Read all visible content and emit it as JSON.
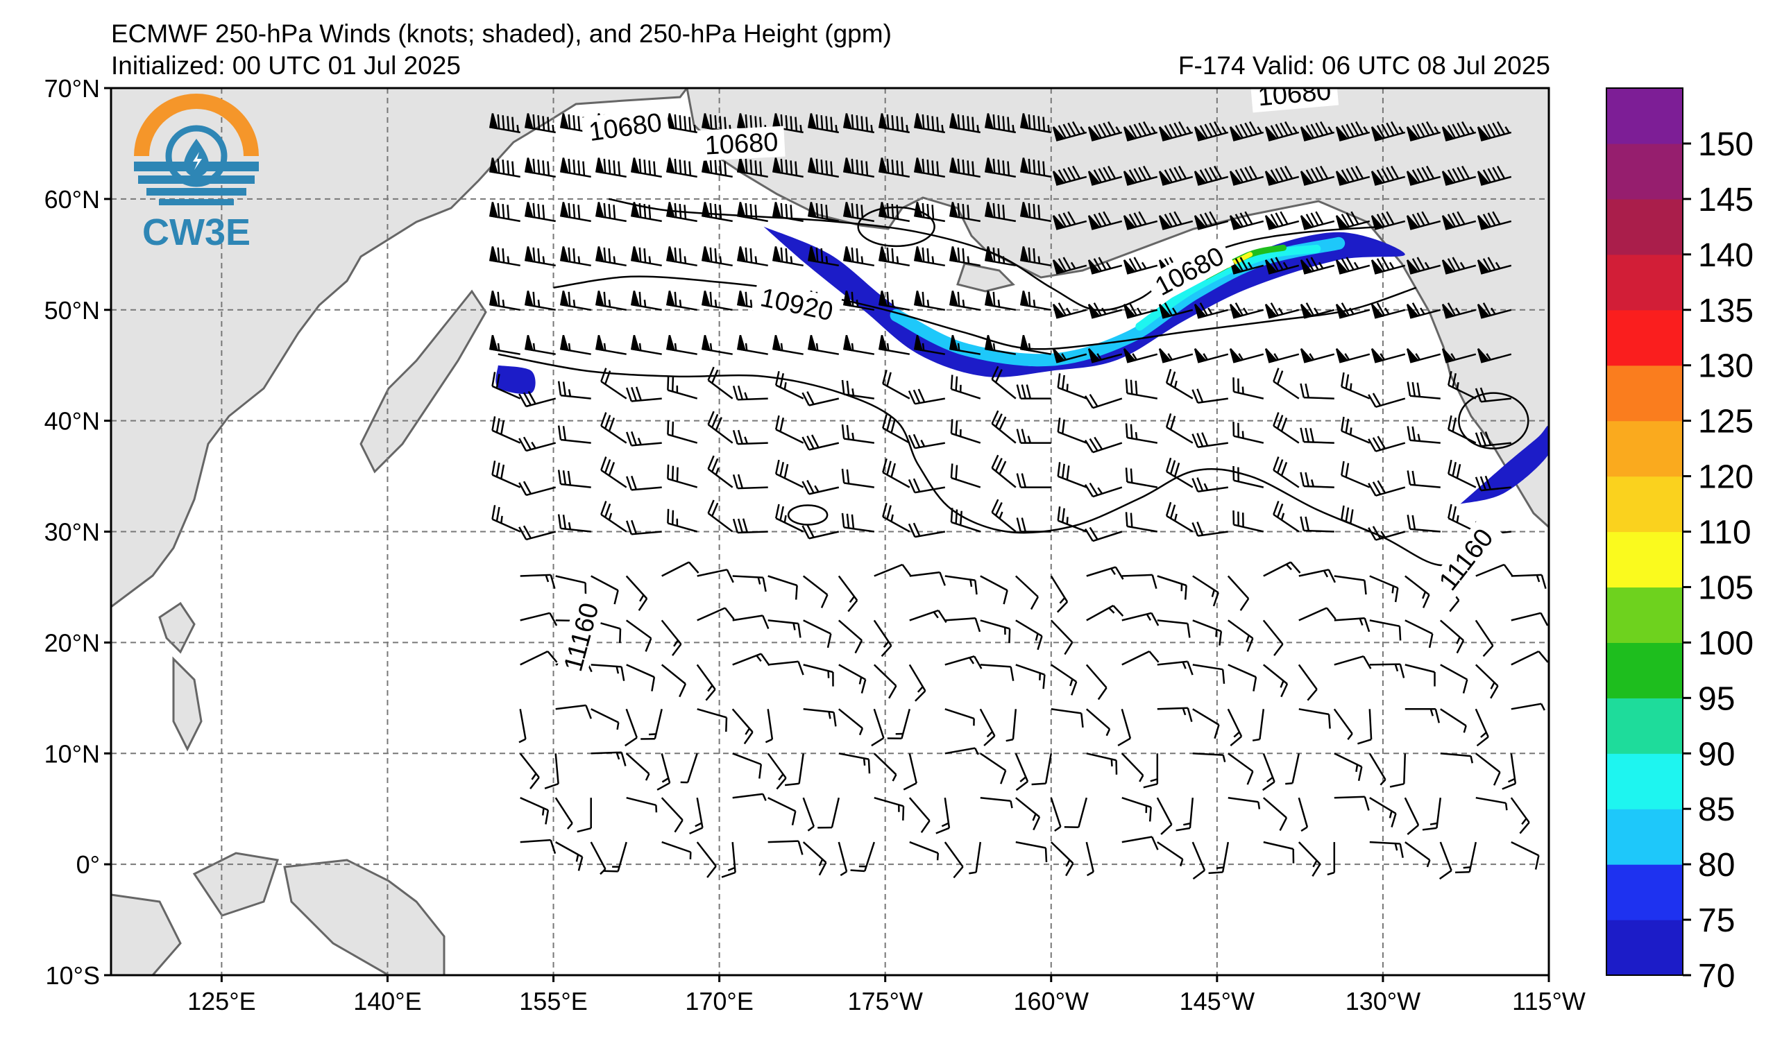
{
  "header": {
    "title": "ECMWF 250-hPa Winds (knots; shaded), and 250-hPa Height (gpm)",
    "initialized": "Initialized: 00 UTC 01 Jul 2025",
    "valid": "F-174  Valid: 06 UTC 08 Jul 2025"
  },
  "logo": {
    "text": "CW3E",
    "ring_color": "#F5962A",
    "accent_color": "#2E86B5"
  },
  "axes": {
    "lon_min": 115,
    "lon_max": 245,
    "lat_min": -10,
    "lat_max": 70,
    "lat_ticks": [
      {
        "v": 70,
        "label": "70°N"
      },
      {
        "v": 60,
        "label": "60°N"
      },
      {
        "v": 50,
        "label": "50°N"
      },
      {
        "v": 40,
        "label": "40°N"
      },
      {
        "v": 30,
        "label": "30°N"
      },
      {
        "v": 20,
        "label": "20°N"
      },
      {
        "v": 10,
        "label": "10°N"
      },
      {
        "v": 0,
        "label": "0°"
      },
      {
        "v": -10,
        "label": "10°S"
      }
    ],
    "lon_ticks": [
      {
        "v": 125,
        "label": "125°E"
      },
      {
        "v": 140,
        "label": "140°E"
      },
      {
        "v": 155,
        "label": "155°E"
      },
      {
        "v": 170,
        "label": "170°E"
      },
      {
        "v": 185,
        "label": "175°W"
      },
      {
        "v": 200,
        "label": "160°W"
      },
      {
        "v": 215,
        "label": "145°W"
      },
      {
        "v": 230,
        "label": "130°W"
      },
      {
        "v": 245,
        "label": "115°W"
      }
    ]
  },
  "colorbar": {
    "levels": [
      70,
      75,
      80,
      85,
      90,
      95,
      100,
      105,
      110,
      120,
      125,
      130,
      135,
      140,
      145,
      150,
      155
    ],
    "colors": [
      "#1C1CC8",
      "#1E32F0",
      "#1EC8FA",
      "#1EF5F0",
      "#1EDC9B",
      "#1EBE1E",
      "#6ED21E",
      "#FAFA1E",
      "#FAD21E",
      "#FAAA1E",
      "#FA7D1E",
      "#FA1E1E",
      "#D21E37",
      "#AA1E4B",
      "#961E6E",
      "#7D1E96"
    ],
    "tick_labels": [
      "70",
      "75",
      "80",
      "85",
      "90",
      "95",
      "100",
      "105",
      "110",
      "120",
      "125",
      "130",
      "135",
      "140",
      "145",
      "150"
    ]
  },
  "map_data": {
    "contours": [
      {
        "label": "10680",
        "points": [
          [
            160,
            60
          ],
          [
            165,
            59
          ],
          [
            172,
            58.5
          ],
          [
            180,
            58
          ],
          [
            188,
            57
          ],
          [
            195,
            55
          ],
          [
            200,
            52
          ],
          [
            204,
            50
          ],
          [
            208,
            51
          ],
          [
            212,
            54
          ],
          [
            217,
            56
          ],
          [
            223,
            57
          ],
          [
            230,
            57.5
          ]
        ]
      },
      {
        "label": "10920",
        "points": [
          [
            155,
            52
          ],
          [
            162,
            53
          ],
          [
            170,
            52.5
          ],
          [
            178,
            51.5
          ],
          [
            185,
            50
          ],
          [
            192,
            48
          ],
          [
            198,
            46.5
          ],
          [
            205,
            47
          ],
          [
            212,
            48
          ],
          [
            220,
            49
          ],
          [
            227,
            50
          ],
          [
            233,
            52
          ]
        ]
      },
      {
        "label": "11160",
        "points": [
          [
            150,
            46
          ],
          [
            158,
            44.5
          ],
          [
            166,
            44
          ],
          [
            174,
            44
          ],
          [
            181,
            42.5
          ],
          [
            186,
            40
          ],
          [
            188,
            36
          ],
          [
            191,
            32
          ],
          [
            196,
            30
          ],
          [
            202,
            30.5
          ],
          [
            208,
            33
          ],
          [
            213,
            35.5
          ],
          [
            218,
            35
          ],
          [
            224,
            32
          ],
          [
            230,
            29.5
          ],
          [
            235,
            27
          ],
          [
            239,
            28
          ]
        ]
      }
    ],
    "contour_labels": [
      {
        "text": "10680",
        "lon": 161.5,
        "lat": 66.5,
        "angle": -8
      },
      {
        "text": "10680",
        "lon": 172,
        "lat": 65,
        "angle": -3
      },
      {
        "text": "10680",
        "lon": 222,
        "lat": 69.5,
        "angle": -5
      },
      {
        "text": "10680",
        "lon": 212.5,
        "lat": 53.5,
        "angle": -28
      },
      {
        "text": "10920",
        "lon": 177,
        "lat": 50.5,
        "angle": 12
      },
      {
        "text": "11160",
        "lon": 157.5,
        "lat": 20.5,
        "angle": -75
      },
      {
        "text": "11160",
        "lon": 237.5,
        "lat": 27.5,
        "angle": -52
      }
    ],
    "jet_streaks": [
      {
        "max_kt": 105,
        "points": [
          [
            174,
            57.5
          ],
          [
            180,
            55
          ],
          [
            185,
            51
          ],
          [
            190,
            47.5
          ],
          [
            195,
            45.5
          ],
          [
            200,
            45
          ],
          [
            206,
            47
          ],
          [
            212,
            51
          ],
          [
            218,
            55
          ],
          [
            226,
            57
          ],
          [
            232,
            55
          ],
          [
            226,
            54.5
          ],
          [
            218,
            52
          ],
          [
            212,
            49
          ],
          [
            206,
            45.5
          ],
          [
            200,
            44.5
          ],
          [
            194,
            44
          ],
          [
            188,
            46
          ],
          [
            183,
            50
          ],
          [
            178,
            54
          ],
          [
            174,
            57.5
          ]
        ]
      },
      {
        "max_kt": 80,
        "points": [
          [
            237,
            32.5
          ],
          [
            241,
            36
          ],
          [
            244,
            38.5
          ],
          [
            245,
            39.5
          ],
          [
            245,
            37
          ],
          [
            241,
            33.5
          ],
          [
            237,
            32.5
          ]
        ]
      },
      {
        "max_kt": 80,
        "points": [
          [
            150,
            45
          ],
          [
            153,
            44.5
          ],
          [
            153,
            42.5
          ],
          [
            150,
            43
          ],
          [
            150,
            45
          ]
        ]
      }
    ]
  }
}
